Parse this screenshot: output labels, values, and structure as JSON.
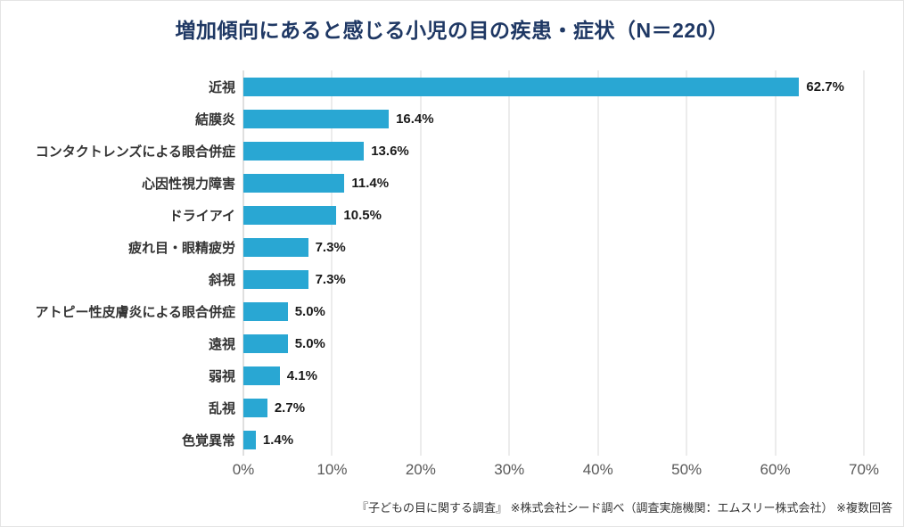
{
  "title": "増加傾向にあると感じる小児の目の疾患・症状（N＝220）",
  "footer": "『子どもの目に関する調査』 ※株式会社シード調べ（調査実施機関：エムスリー株式会社） ※複数回答",
  "colors": {
    "bar": "#29a7d3",
    "title": "#1f3864",
    "grid": "#d9d9d9",
    "axis_line": "#bfbfbf",
    "axis_text": "#595959"
  },
  "chart_data": {
    "type": "bar",
    "orientation": "horizontal",
    "title": "増加傾向にあると感じる小児の目の疾患・症状（N＝220）",
    "categories": [
      "近視",
      "結膜炎",
      "コンタクトレンズによる眼合併症",
      "心因性視力障害",
      "ドライアイ",
      "疲れ目・眼精疲労",
      "斜視",
      "アトピー性皮膚炎による眼合併症",
      "遠視",
      "弱視",
      "乱視",
      "色覚異常"
    ],
    "values": [
      62.7,
      16.4,
      13.6,
      11.4,
      10.5,
      7.3,
      7.3,
      5.0,
      5.0,
      4.1,
      2.7,
      1.4
    ],
    "value_labels": [
      "62.7%",
      "16.4%",
      "13.6%",
      "11.4%",
      "10.5%",
      "7.3%",
      "7.3%",
      "5.0%",
      "5.0%",
      "4.1%",
      "2.7%",
      "1.4%"
    ],
    "xlabel": "",
    "ylabel": "",
    "xlim": [
      0,
      70
    ],
    "x_ticks": [
      "0%",
      "10%",
      "20%",
      "30%",
      "40%",
      "50%",
      "60%",
      "70%"
    ],
    "grid": true,
    "legend": false,
    "sample_size": "N＝220"
  }
}
